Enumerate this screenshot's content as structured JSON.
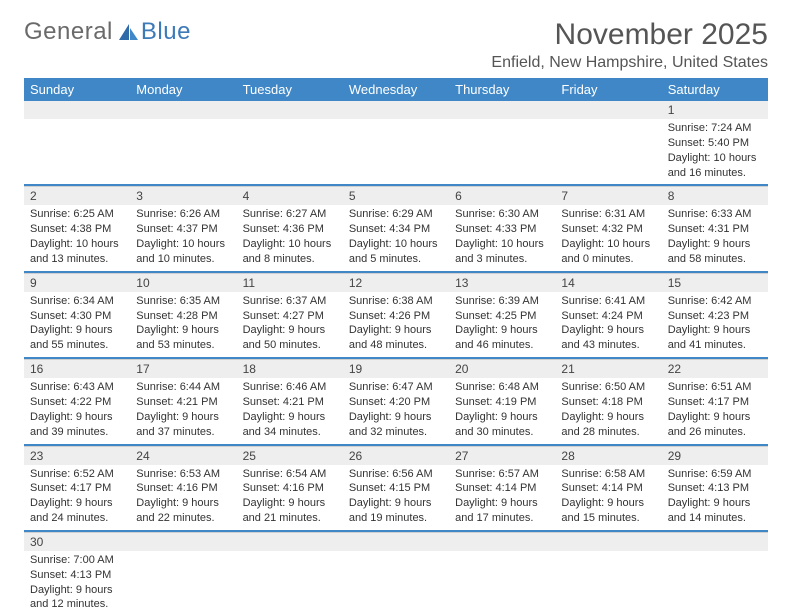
{
  "logo": {
    "text1": "General",
    "text2": "Blue"
  },
  "title": "November 2025",
  "subtitle": "Enfield, New Hampshire, United States",
  "colors": {
    "header_bg": "#3f87c6",
    "header_text": "#ffffff",
    "daynum_bg": "#eeeeee",
    "separator": "#3f87c6",
    "text": "#333333"
  },
  "day_headers": [
    "Sunday",
    "Monday",
    "Tuesday",
    "Wednesday",
    "Thursday",
    "Friday",
    "Saturday"
  ],
  "weeks": [
    [
      null,
      null,
      null,
      null,
      null,
      null,
      {
        "n": "1",
        "sr": "Sunrise: 7:24 AM",
        "ss": "Sunset: 5:40 PM",
        "d1": "Daylight: 10 hours",
        "d2": "and 16 minutes."
      }
    ],
    [
      {
        "n": "2",
        "sr": "Sunrise: 6:25 AM",
        "ss": "Sunset: 4:38 PM",
        "d1": "Daylight: 10 hours",
        "d2": "and 13 minutes."
      },
      {
        "n": "3",
        "sr": "Sunrise: 6:26 AM",
        "ss": "Sunset: 4:37 PM",
        "d1": "Daylight: 10 hours",
        "d2": "and 10 minutes."
      },
      {
        "n": "4",
        "sr": "Sunrise: 6:27 AM",
        "ss": "Sunset: 4:36 PM",
        "d1": "Daylight: 10 hours",
        "d2": "and 8 minutes."
      },
      {
        "n": "5",
        "sr": "Sunrise: 6:29 AM",
        "ss": "Sunset: 4:34 PM",
        "d1": "Daylight: 10 hours",
        "d2": "and 5 minutes."
      },
      {
        "n": "6",
        "sr": "Sunrise: 6:30 AM",
        "ss": "Sunset: 4:33 PM",
        "d1": "Daylight: 10 hours",
        "d2": "and 3 minutes."
      },
      {
        "n": "7",
        "sr": "Sunrise: 6:31 AM",
        "ss": "Sunset: 4:32 PM",
        "d1": "Daylight: 10 hours",
        "d2": "and 0 minutes."
      },
      {
        "n": "8",
        "sr": "Sunrise: 6:33 AM",
        "ss": "Sunset: 4:31 PM",
        "d1": "Daylight: 9 hours",
        "d2": "and 58 minutes."
      }
    ],
    [
      {
        "n": "9",
        "sr": "Sunrise: 6:34 AM",
        "ss": "Sunset: 4:30 PM",
        "d1": "Daylight: 9 hours",
        "d2": "and 55 minutes."
      },
      {
        "n": "10",
        "sr": "Sunrise: 6:35 AM",
        "ss": "Sunset: 4:28 PM",
        "d1": "Daylight: 9 hours",
        "d2": "and 53 minutes."
      },
      {
        "n": "11",
        "sr": "Sunrise: 6:37 AM",
        "ss": "Sunset: 4:27 PM",
        "d1": "Daylight: 9 hours",
        "d2": "and 50 minutes."
      },
      {
        "n": "12",
        "sr": "Sunrise: 6:38 AM",
        "ss": "Sunset: 4:26 PM",
        "d1": "Daylight: 9 hours",
        "d2": "and 48 minutes."
      },
      {
        "n": "13",
        "sr": "Sunrise: 6:39 AM",
        "ss": "Sunset: 4:25 PM",
        "d1": "Daylight: 9 hours",
        "d2": "and 46 minutes."
      },
      {
        "n": "14",
        "sr": "Sunrise: 6:41 AM",
        "ss": "Sunset: 4:24 PM",
        "d1": "Daylight: 9 hours",
        "d2": "and 43 minutes."
      },
      {
        "n": "15",
        "sr": "Sunrise: 6:42 AM",
        "ss": "Sunset: 4:23 PM",
        "d1": "Daylight: 9 hours",
        "d2": "and 41 minutes."
      }
    ],
    [
      {
        "n": "16",
        "sr": "Sunrise: 6:43 AM",
        "ss": "Sunset: 4:22 PM",
        "d1": "Daylight: 9 hours",
        "d2": "and 39 minutes."
      },
      {
        "n": "17",
        "sr": "Sunrise: 6:44 AM",
        "ss": "Sunset: 4:21 PM",
        "d1": "Daylight: 9 hours",
        "d2": "and 37 minutes."
      },
      {
        "n": "18",
        "sr": "Sunrise: 6:46 AM",
        "ss": "Sunset: 4:21 PM",
        "d1": "Daylight: 9 hours",
        "d2": "and 34 minutes."
      },
      {
        "n": "19",
        "sr": "Sunrise: 6:47 AM",
        "ss": "Sunset: 4:20 PM",
        "d1": "Daylight: 9 hours",
        "d2": "and 32 minutes."
      },
      {
        "n": "20",
        "sr": "Sunrise: 6:48 AM",
        "ss": "Sunset: 4:19 PM",
        "d1": "Daylight: 9 hours",
        "d2": "and 30 minutes."
      },
      {
        "n": "21",
        "sr": "Sunrise: 6:50 AM",
        "ss": "Sunset: 4:18 PM",
        "d1": "Daylight: 9 hours",
        "d2": "and 28 minutes."
      },
      {
        "n": "22",
        "sr": "Sunrise: 6:51 AM",
        "ss": "Sunset: 4:17 PM",
        "d1": "Daylight: 9 hours",
        "d2": "and 26 minutes."
      }
    ],
    [
      {
        "n": "23",
        "sr": "Sunrise: 6:52 AM",
        "ss": "Sunset: 4:17 PM",
        "d1": "Daylight: 9 hours",
        "d2": "and 24 minutes."
      },
      {
        "n": "24",
        "sr": "Sunrise: 6:53 AM",
        "ss": "Sunset: 4:16 PM",
        "d1": "Daylight: 9 hours",
        "d2": "and 22 minutes."
      },
      {
        "n": "25",
        "sr": "Sunrise: 6:54 AM",
        "ss": "Sunset: 4:16 PM",
        "d1": "Daylight: 9 hours",
        "d2": "and 21 minutes."
      },
      {
        "n": "26",
        "sr": "Sunrise: 6:56 AM",
        "ss": "Sunset: 4:15 PM",
        "d1": "Daylight: 9 hours",
        "d2": "and 19 minutes."
      },
      {
        "n": "27",
        "sr": "Sunrise: 6:57 AM",
        "ss": "Sunset: 4:14 PM",
        "d1": "Daylight: 9 hours",
        "d2": "and 17 minutes."
      },
      {
        "n": "28",
        "sr": "Sunrise: 6:58 AM",
        "ss": "Sunset: 4:14 PM",
        "d1": "Daylight: 9 hours",
        "d2": "and 15 minutes."
      },
      {
        "n": "29",
        "sr": "Sunrise: 6:59 AM",
        "ss": "Sunset: 4:13 PM",
        "d1": "Daylight: 9 hours",
        "d2": "and 14 minutes."
      }
    ],
    [
      {
        "n": "30",
        "sr": "Sunrise: 7:00 AM",
        "ss": "Sunset: 4:13 PM",
        "d1": "Daylight: 9 hours",
        "d2": "and 12 minutes."
      },
      null,
      null,
      null,
      null,
      null,
      null
    ]
  ]
}
